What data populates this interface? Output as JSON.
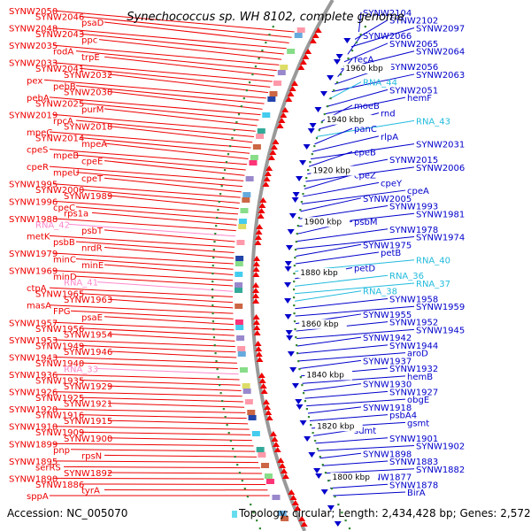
{
  "title": "Synechococcus sp. WH 8102, complete genome",
  "accession": "Accession: NC_005070",
  "topology": "Topology: circular; Length: 2,434,428 bp; Genes: 2,572",
  "colors": {
    "forward": "#ee0000",
    "reverse": "#0000cc",
    "rna_forward": "#ff88cc",
    "rna_reverse": "#22bbdd",
    "backbone": "#999999",
    "dots": "#338833"
  },
  "kbp_labels": [
    "1960 kbp",
    "1940 kbp",
    "1920 kbp",
    "1900 kbp",
    "1880 kbp",
    "1860 kbp",
    "1840 kbp",
    "1820 kbp",
    "1800 kbp"
  ],
  "left_labels": [
    {
      "text": "SYNW2050",
      "type": "gene"
    },
    {
      "text": "SYNW2046",
      "type": "gene"
    },
    {
      "text": "psaD",
      "type": "gene"
    },
    {
      "text": "SYNW2048",
      "type": "gene"
    },
    {
      "text": "SYNW2043",
      "type": "gene"
    },
    {
      "text": "ppc",
      "type": "gene"
    },
    {
      "text": "SYNW2035",
      "type": "gene"
    },
    {
      "text": "rodA",
      "type": "gene"
    },
    {
      "text": "trpE",
      "type": "gene"
    },
    {
      "text": "SYNW2033",
      "type": "gene"
    },
    {
      "text": "SYNW2041",
      "type": "gene"
    },
    {
      "text": "SYNW2032",
      "type": "gene"
    },
    {
      "text": "pex",
      "type": "gene"
    },
    {
      "text": "pebB",
      "type": "gene"
    },
    {
      "text": "SYNW2030",
      "type": "gene"
    },
    {
      "text": "pebA",
      "type": "gene"
    },
    {
      "text": "SYNW2025",
      "type": "gene"
    },
    {
      "text": "purM",
      "type": "gene"
    },
    {
      "text": "SYNW2019",
      "type": "gene"
    },
    {
      "text": "rpcA",
      "type": "gene"
    },
    {
      "text": "SYNW2018",
      "type": "gene"
    },
    {
      "text": "mpeC",
      "type": "gene"
    },
    {
      "text": "SYNW2014",
      "type": "gene"
    },
    {
      "text": "mpeA",
      "type": "gene"
    },
    {
      "text": "cpeS",
      "type": "gene"
    },
    {
      "text": "mpeB",
      "type": "gene"
    },
    {
      "text": "cpeE",
      "type": "gene"
    },
    {
      "text": "cpeR",
      "type": "gene"
    },
    {
      "text": "mpeU",
      "type": "gene"
    },
    {
      "text": "cpeT",
      "type": "gene"
    },
    {
      "text": "SYNW1995",
      "type": "gene"
    },
    {
      "text": "SYNW2000",
      "type": "gene"
    },
    {
      "text": "SYNW1989",
      "type": "gene"
    },
    {
      "text": "SYNW1996",
      "type": "gene"
    },
    {
      "text": "cpeC",
      "type": "gene"
    },
    {
      "text": "rps1a",
      "type": "gene"
    },
    {
      "text": "SYNW1988",
      "type": "gene"
    },
    {
      "text": "RNA_42",
      "type": "rna"
    },
    {
      "text": "psbT",
      "type": "gene"
    },
    {
      "text": "metK",
      "type": "gene"
    },
    {
      "text": "psbB",
      "type": "gene"
    },
    {
      "text": "nrdR",
      "type": "gene"
    },
    {
      "text": "SYNW1979",
      "type": "gene"
    },
    {
      "text": "minC",
      "type": "gene"
    },
    {
      "text": "minE",
      "type": "gene"
    },
    {
      "text": "SYNW1969",
      "type": "gene"
    },
    {
      "text": "minD",
      "type": "gene"
    },
    {
      "text": "RNA_41",
      "type": "rna"
    },
    {
      "text": "ctpA",
      "type": "gene"
    },
    {
      "text": "SYNW1965",
      "type": "gene"
    },
    {
      "text": "SYNW1963",
      "type": "gene"
    },
    {
      "text": "masA",
      "type": "gene"
    },
    {
      "text": "FPG",
      "type": "gene"
    },
    {
      "text": "psaE",
      "type": "gene"
    },
    {
      "text": "SYNW1957",
      "type": "gene"
    },
    {
      "text": "SYNW1956",
      "type": "gene"
    },
    {
      "text": "SYNW1954",
      "type": "gene"
    },
    {
      "text": "SYNW1953",
      "type": "gene"
    },
    {
      "text": "SYNW1949",
      "type": "gene"
    },
    {
      "text": "SYNW1946",
      "type": "gene"
    },
    {
      "text": "SYNW1943",
      "type": "gene"
    },
    {
      "text": "SYNW1940",
      "type": "gene"
    },
    {
      "text": "RNA_33",
      "type": "rna"
    },
    {
      "text": "SYNW1936",
      "type": "gene"
    },
    {
      "text": "SYNW1935",
      "type": "gene"
    },
    {
      "text": "SYNW1929",
      "type": "gene"
    },
    {
      "text": "SYNW1926",
      "type": "gene"
    },
    {
      "text": "SYNW1925",
      "type": "gene"
    },
    {
      "text": "SYNW1921",
      "type": "gene"
    },
    {
      "text": "SYNW1920",
      "type": "gene"
    },
    {
      "text": "SYNW1916",
      "type": "gene"
    },
    {
      "text": "SYNW1915",
      "type": "gene"
    },
    {
      "text": "SYNW1910",
      "type": "gene"
    },
    {
      "text": "SYNW1909",
      "type": "gene"
    },
    {
      "text": "SYNW1900",
      "type": "gene"
    },
    {
      "text": "SYNW1899",
      "type": "gene"
    },
    {
      "text": "pnp",
      "type": "gene"
    },
    {
      "text": "rpsN",
      "type": "gene"
    },
    {
      "text": "SYNW1895",
      "type": "gene"
    },
    {
      "text": "serRS",
      "type": "gene"
    },
    {
      "text": "SYNW1892",
      "type": "gene"
    },
    {
      "text": "SYNW1890",
      "type": "gene"
    },
    {
      "text": "SYNW1886",
      "type": "gene"
    },
    {
      "text": "tyrA",
      "type": "gene"
    },
    {
      "text": "sppA",
      "type": "gene"
    }
  ],
  "right_labels": [
    {
      "text": "SYNW2104",
      "type": "gene"
    },
    {
      "text": "SYNW2102",
      "type": "gene"
    },
    {
      "text": "SYNW2097",
      "type": "gene"
    },
    {
      "text": "SYNW2066",
      "type": "gene"
    },
    {
      "text": "SYNW2065",
      "type": "gene"
    },
    {
      "text": "SYNW2064",
      "type": "gene"
    },
    {
      "text": "recA",
      "type": "gene"
    },
    {
      "text": "SYNW2056",
      "type": "gene"
    },
    {
      "text": "SYNW2063",
      "type": "gene"
    },
    {
      "text": "RNA_44",
      "type": "rna"
    },
    {
      "text": "SYNW2051",
      "type": "gene"
    },
    {
      "text": "hemF",
      "type": "gene"
    },
    {
      "text": "moeB",
      "type": "gene"
    },
    {
      "text": "rnd",
      "type": "gene"
    },
    {
      "text": "RNA_43",
      "type": "rna"
    },
    {
      "text": "panC",
      "type": "gene"
    },
    {
      "text": "rlpA",
      "type": "gene"
    },
    {
      "text": "SYNW2031",
      "type": "gene"
    },
    {
      "text": "cpeB",
      "type": "gene"
    },
    {
      "text": "SYNW2015",
      "type": "gene"
    },
    {
      "text": "SYNW2006",
      "type": "gene"
    },
    {
      "text": "cpeZ",
      "type": "gene"
    },
    {
      "text": "cpeY",
      "type": "gene"
    },
    {
      "text": "cpeA",
      "type": "gene"
    },
    {
      "text": "SYNW2005",
      "type": "gene"
    },
    {
      "text": "SYNW1993",
      "type": "gene"
    },
    {
      "text": "SYNW1981",
      "type": "gene"
    },
    {
      "text": "psbM",
      "type": "gene"
    },
    {
      "text": "SYNW1978",
      "type": "gene"
    },
    {
      "text": "SYNW1974",
      "type": "gene"
    },
    {
      "text": "SYNW1975",
      "type": "gene"
    },
    {
      "text": "petB",
      "type": "gene"
    },
    {
      "text": "RNA_40",
      "type": "rna"
    },
    {
      "text": "petD",
      "type": "gene"
    },
    {
      "text": "RNA_36",
      "type": "rna"
    },
    {
      "text": "RNA_37",
      "type": "rna"
    },
    {
      "text": "RNA_38",
      "type": "rna"
    },
    {
      "text": "SYNW1958",
      "type": "gene"
    },
    {
      "text": "SYNW1959",
      "type": "gene"
    },
    {
      "text": "SYNW1955",
      "type": "gene"
    },
    {
      "text": "SYNW1952",
      "type": "gene"
    },
    {
      "text": "SYNW1945",
      "type": "gene"
    },
    {
      "text": "SYNW1942",
      "type": "gene"
    },
    {
      "text": "SYNW1944",
      "type": "gene"
    },
    {
      "text": "aroD",
      "type": "gene"
    },
    {
      "text": "SYNW1937",
      "type": "gene"
    },
    {
      "text": "SYNW1932",
      "type": "gene"
    },
    {
      "text": "hemB",
      "type": "gene"
    },
    {
      "text": "SYNW1930",
      "type": "gene"
    },
    {
      "text": "SYNW1927",
      "type": "gene"
    },
    {
      "text": "obgE",
      "type": "gene"
    },
    {
      "text": "SYNW1918",
      "type": "gene"
    },
    {
      "text": "psbA4",
      "type": "gene"
    },
    {
      "text": "gsmt",
      "type": "gene"
    },
    {
      "text": "sdmt",
      "type": "gene"
    },
    {
      "text": "SYNW1901",
      "type": "gene"
    },
    {
      "text": "SYNW1902",
      "type": "gene"
    },
    {
      "text": "SYNW1898",
      "type": "gene"
    },
    {
      "text": "SYNW1883",
      "type": "gene"
    },
    {
      "text": "SYNW1882",
      "type": "gene"
    },
    {
      "text": "SYNW1877",
      "type": "gene"
    },
    {
      "text": "SYNW1878",
      "type": "gene"
    },
    {
      "text": "BirA",
      "type": "gene"
    }
  ]
}
